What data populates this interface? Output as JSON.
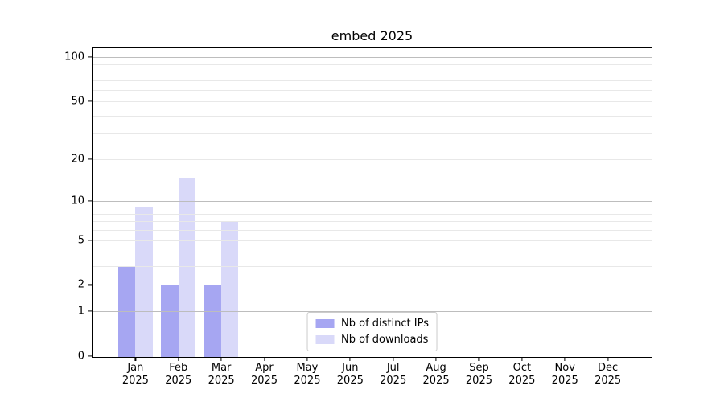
{
  "chart_data": {
    "type": "bar",
    "title": "embed 2025",
    "categories": [
      {
        "month": "Jan",
        "year": "2025"
      },
      {
        "month": "Feb",
        "year": "2025"
      },
      {
        "month": "Mar",
        "year": "2025"
      },
      {
        "month": "Apr",
        "year": "2025"
      },
      {
        "month": "May",
        "year": "2025"
      },
      {
        "month": "Jun",
        "year": "2025"
      },
      {
        "month": "Jul",
        "year": "2025"
      },
      {
        "month": "Aug",
        "year": "2025"
      },
      {
        "month": "Sep",
        "year": "2025"
      },
      {
        "month": "Oct",
        "year": "2025"
      },
      {
        "month": "Nov",
        "year": "2025"
      },
      {
        "month": "Dec",
        "year": "2025"
      }
    ],
    "series": [
      {
        "name": "Nb of distinct IPs",
        "color": "#a6a6f2",
        "values": [
          3,
          2,
          2,
          0,
          0,
          0,
          0,
          0,
          0,
          0,
          0,
          0
        ]
      },
      {
        "name": "Nb of downloads",
        "color": "#d9d9f9",
        "values": [
          9,
          15,
          7,
          0,
          0,
          0,
          0,
          0,
          0,
          0,
          0,
          0
        ]
      }
    ],
    "xlabel": "",
    "ylabel": "",
    "y_scale": "log10(value+1)",
    "y_ticks": [
      0,
      1,
      2,
      5,
      10,
      20,
      50,
      100
    ],
    "y_major_gridlines": [
      1,
      10,
      100
    ],
    "y_minor_gridlines": [
      2,
      3,
      4,
      5,
      6,
      7,
      8,
      9,
      20,
      30,
      40,
      50,
      60,
      70,
      80,
      90
    ],
    "ylim": [
      0,
      115
    ],
    "grid": true,
    "legend_position": "lower center"
  },
  "colors": {
    "grid_major": "#bdbdbd",
    "grid_minor": "#e8e8e8",
    "axis": "#000000",
    "background": "#ffffff"
  }
}
